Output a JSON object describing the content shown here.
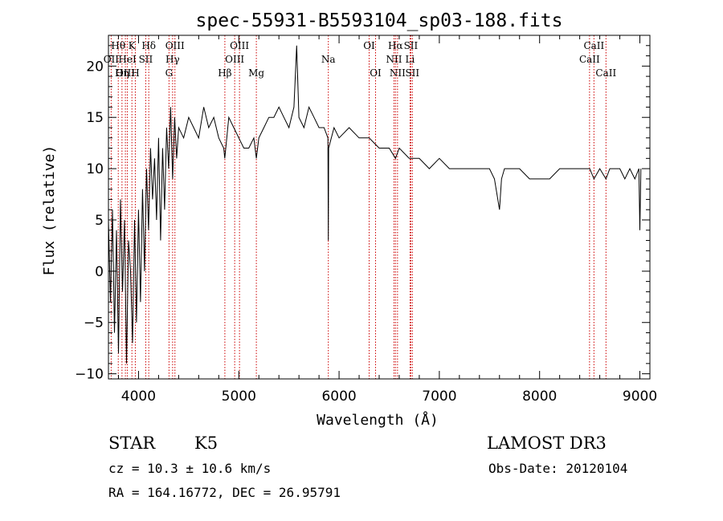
{
  "chart_data": {
    "type": "line",
    "title": "spec-55931-B5593104_sp03-188.fits",
    "xlabel": "Wavelength (Å)",
    "ylabel": "Flux (relative)",
    "xlim": [
      3700,
      9100
    ],
    "ylim": [
      -10.5,
      23
    ],
    "xticks": [
      4000,
      5000,
      6000,
      7000,
      8000,
      9000
    ],
    "yticks": [
      -10,
      -5,
      0,
      5,
      10,
      15,
      20
    ],
    "series": [
      {
        "name": "flux",
        "x": [
          3700,
          3720,
          3740,
          3760,
          3780,
          3800,
          3820,
          3840,
          3860,
          3880,
          3900,
          3920,
          3940,
          3960,
          3980,
          4000,
          4020,
          4040,
          4060,
          4080,
          4100,
          4120,
          4140,
          4160,
          4180,
          4200,
          4220,
          4240,
          4260,
          4280,
          4300,
          4320,
          4340,
          4360,
          4380,
          4400,
          4450,
          4500,
          4550,
          4600,
          4650,
          4700,
          4750,
          4800,
          4850,
          4860,
          4900,
          4950,
          5000,
          5050,
          5100,
          5150,
          5175,
          5200,
          5250,
          5300,
          5350,
          5400,
          5450,
          5500,
          5550,
          5577,
          5600,
          5650,
          5700,
          5750,
          5800,
          5850,
          5889,
          5893,
          5896,
          5950,
          6000,
          6100,
          6200,
          6300,
          6400,
          6500,
          6563,
          6600,
          6700,
          6800,
          6900,
          7000,
          7100,
          7200,
          7300,
          7400,
          7500,
          7550,
          7600,
          7620,
          7650,
          7700,
          7800,
          7900,
          8000,
          8100,
          8200,
          8300,
          8400,
          8500,
          8542,
          8600,
          8662,
          8700,
          8800,
          8850,
          8900,
          8950,
          8990,
          9000,
          9010
        ],
        "y": [
          5,
          -3,
          6,
          -6,
          4,
          -8,
          7,
          -2,
          5,
          -9,
          3,
          0,
          -7,
          5,
          -5,
          6,
          -3,
          8,
          0,
          10,
          4,
          12,
          7,
          11,
          5,
          13,
          3,
          12,
          6,
          14,
          10,
          16,
          9,
          15,
          11,
          14,
          13,
          15,
          14,
          13,
          16,
          14,
          15,
          13,
          12,
          11,
          15,
          14,
          13,
          12,
          12,
          13,
          11,
          13,
          14,
          15,
          15,
          16,
          15,
          14,
          16,
          22,
          15,
          14,
          16,
          15,
          14,
          14,
          13,
          3,
          12,
          14,
          13,
          14,
          13,
          13,
          12,
          12,
          11,
          12,
          11,
          11,
          10,
          11,
          10,
          10,
          10,
          10,
          10,
          9,
          6,
          9,
          10,
          10,
          10,
          9,
          9,
          9,
          10,
          10,
          10,
          10,
          9,
          10,
          9,
          10,
          10,
          9,
          10,
          9,
          10,
          4,
          10
        ]
      }
    ],
    "lines": [
      {
        "label": "Hθ",
        "x": 3798,
        "row": 0
      },
      {
        "label": "OII",
        "x": 3727,
        "row": 1
      },
      {
        "label": "OIII",
        "x": 3869,
        "row": 2
      },
      {
        "label": "K",
        "x": 3934,
        "row": 0
      },
      {
        "label": "HeI",
        "x": 3889,
        "row": 1
      },
      {
        "label": "Hη",
        "x": 3835,
        "row": 2
      },
      {
        "label": "Hδ",
        "x": 4102,
        "row": 0
      },
      {
        "label": "SII",
        "x": 4072,
        "row": 1
      },
      {
        "label": "H",
        "x": 3968,
        "row": 2
      },
      {
        "label": "OIII",
        "x": 4363,
        "row": 0
      },
      {
        "label": "Hγ",
        "x": 4340,
        "row": 1
      },
      {
        "label": "G",
        "x": 4304,
        "row": 2
      },
      {
        "label": "OIII",
        "x": 5007,
        "row": 0
      },
      {
        "label": "OIII",
        "x": 4959,
        "row": 1
      },
      {
        "label": "Hβ",
        "x": 4861,
        "row": 2
      },
      {
        "label": "Mg",
        "x": 5175,
        "row": 2
      },
      {
        "label": "Na",
        "x": 5893,
        "row": 1
      },
      {
        "label": "OI",
        "x": 6300,
        "row": 0
      },
      {
        "label": "OI",
        "x": 6364,
        "row": 2
      },
      {
        "label": "Hα",
        "x": 6563,
        "row": 0
      },
      {
        "label": "SII",
        "x": 6716,
        "row": 0
      },
      {
        "label": "NII",
        "x": 6548,
        "row": 1
      },
      {
        "label": "Li",
        "x": 6708,
        "row": 1
      },
      {
        "label": "NII",
        "x": 6583,
        "row": 2
      },
      {
        "label": "SII",
        "x": 6731,
        "row": 2
      },
      {
        "label": "CaII",
        "x": 8542,
        "row": 0
      },
      {
        "label": "CaII",
        "x": 8498,
        "row": 1
      },
      {
        "label": "CaII",
        "x": 8662,
        "row": 2
      }
    ]
  },
  "info": {
    "class": "STAR",
    "subclass": "K5",
    "survey": "LAMOST DR3",
    "cz": "cz = 10.3 ± 10.6 km/s",
    "obs_date": "Obs-Date: 20120104",
    "coords": "RA = 164.16772, DEC =  26.95791"
  },
  "colors": {
    "spectrum": "#000000",
    "line_markers": "#cc0000",
    "axes": "#000000"
  }
}
